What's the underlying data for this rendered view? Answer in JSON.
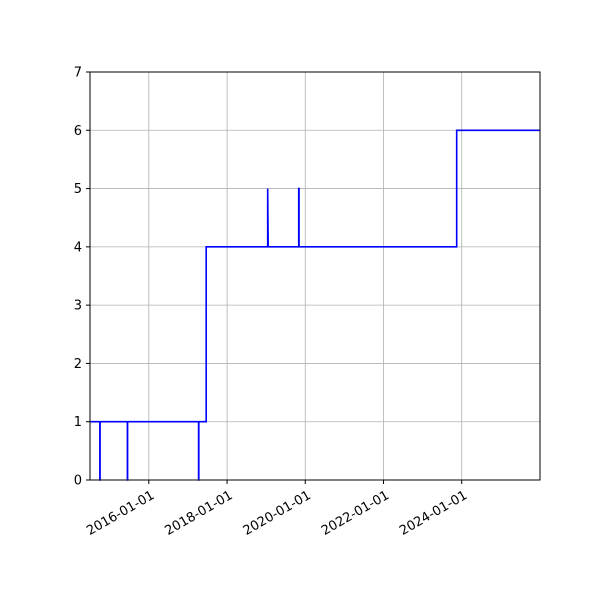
{
  "chart_data": {
    "type": "line",
    "title": "",
    "xlabel": "",
    "ylabel": "",
    "grid": true,
    "xlim": [
      "2014-07-01",
      "2026-01-01"
    ],
    "ylim": [
      0,
      7
    ],
    "y_ticks": [
      "0",
      "1",
      "2",
      "3",
      "4",
      "5",
      "6",
      "7"
    ],
    "x_ticks": [
      "2016-01-01",
      "2018-01-01",
      "2020-01-01",
      "2022-01-01",
      "2024-01-01"
    ],
    "step": "post",
    "series": [
      {
        "color": "#0000ff",
        "points": [
          [
            "2014-07-01",
            1
          ],
          [
            "2014-10-01",
            1
          ],
          [
            "2014-10-01",
            0
          ],
          [
            "2014-10-03",
            0
          ],
          [
            "2014-10-03",
            1
          ],
          [
            "2015-06-15",
            1
          ],
          [
            "2015-06-15",
            0
          ],
          [
            "2015-06-17",
            0
          ],
          [
            "2015-06-17",
            1
          ],
          [
            "2017-04-10",
            1
          ],
          [
            "2017-04-10",
            0
          ],
          [
            "2017-04-12",
            0
          ],
          [
            "2017-04-12",
            1
          ],
          [
            "2017-06-20",
            1
          ],
          [
            "2017-06-20",
            4
          ],
          [
            "2019-01-15",
            4
          ],
          [
            "2019-01-15",
            5
          ],
          [
            "2019-01-20",
            4
          ],
          [
            "2019-11-01",
            4
          ],
          [
            "2019-11-01",
            5
          ],
          [
            "2019-11-04",
            5
          ],
          [
            "2019-11-04",
            4
          ],
          [
            "2023-11-15",
            4
          ],
          [
            "2023-11-15",
            6
          ],
          [
            "2026-01-01",
            6
          ]
        ]
      }
    ]
  }
}
